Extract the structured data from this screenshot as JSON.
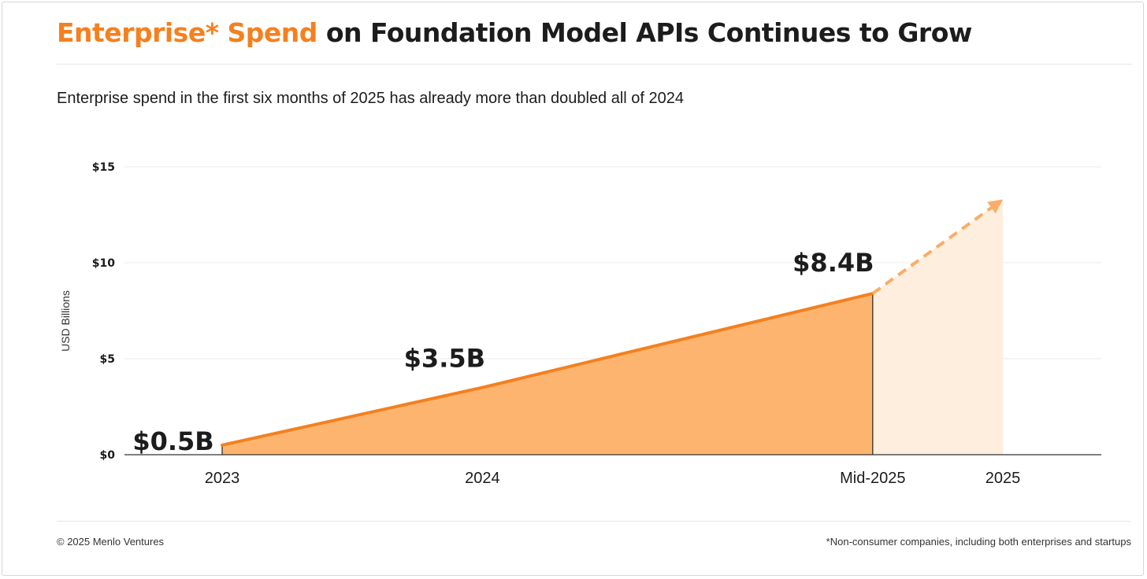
{
  "header": {
    "title_accent": "Enterprise* Spend",
    "title_rest": " on Foundation Model APIs Continues to Grow",
    "subtitle": "Enterprise spend in the first six months of 2025 has already more than doubled all of 2024"
  },
  "footer": {
    "copyright": "© 2025 Menlo Ventures",
    "note": "*Non-consumer companies, including both enterprises and startups"
  },
  "colors": {
    "accent": "#f4801f",
    "area_fill": "#fdb46e",
    "projection_fill": "#fdeedd",
    "projection_line": "#f9ad67",
    "text": "#1c1c1c",
    "grid": "#ebebeb"
  },
  "chart_data": {
    "type": "area",
    "ylabel": "USD Billions",
    "ylim": [
      0,
      15
    ],
    "yticks": [
      0,
      5,
      10,
      15
    ],
    "ytick_labels": [
      "$0",
      "$5",
      "$10",
      "$15"
    ],
    "categories": [
      "2023",
      "2024",
      "Mid-2025",
      "2025"
    ],
    "x": [
      2023,
      2024,
      2025.5,
      2026
    ],
    "values": [
      0.5,
      3.5,
      8.4,
      13.3
    ],
    "data_labels": [
      "$0.5B",
      "$3.5B",
      "$8.4B",
      ""
    ],
    "projected_from_index": 2,
    "grid": true,
    "legend": "none"
  }
}
